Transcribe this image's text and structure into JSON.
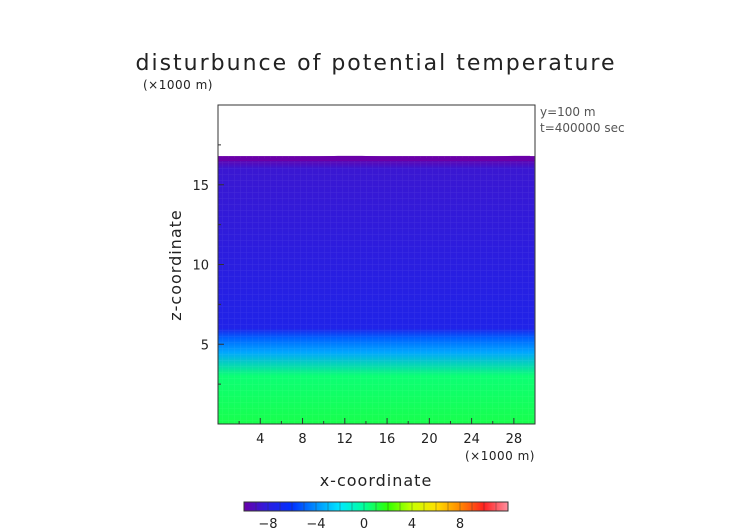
{
  "chart_data": {
    "type": "heatmap",
    "title": "disturbunce of potential temperature",
    "xlabel": "x-coordinate",
    "ylabel": "z-coordinate",
    "x_unit": "(×1000 m)",
    "z_unit": "(×1000 m)",
    "xlim": [
      0,
      30
    ],
    "zlim": [
      0,
      20
    ],
    "x_ticks": [
      "4",
      "8",
      "12",
      "16",
      "20",
      "24",
      "28"
    ],
    "z_ticks": [
      "5",
      "10",
      "15"
    ],
    "info": [
      "y=100 m",
      "t=400000 sec"
    ],
    "colorbar": {
      "range": [
        -10,
        12
      ],
      "ticks": [
        "−8",
        "−4",
        "0",
        "4",
        "8"
      ],
      "colors": [
        "#6a00a8",
        "#2a1ee0",
        "#0030ff",
        "#0090ff",
        "#00e8ff",
        "#00ff9a",
        "#30ff00",
        "#c8ff00",
        "#ffe000",
        "#ff8800",
        "#ff2020",
        "#ff90a0"
      ]
    },
    "z_profile": [
      {
        "z": 0,
        "value": 1.0
      },
      {
        "z": 3,
        "value": 0.5
      },
      {
        "z": 4.5,
        "value": -3.5
      },
      {
        "z": 5.4,
        "value": -5.0
      },
      {
        "z": 6.0,
        "value": -7.5
      },
      {
        "z": 10,
        "value": -8.0
      },
      {
        "z": 16,
        "value": -8.5
      },
      {
        "z": 16.7,
        "value": -10.0
      }
    ],
    "data_top_z": 16.8
  }
}
